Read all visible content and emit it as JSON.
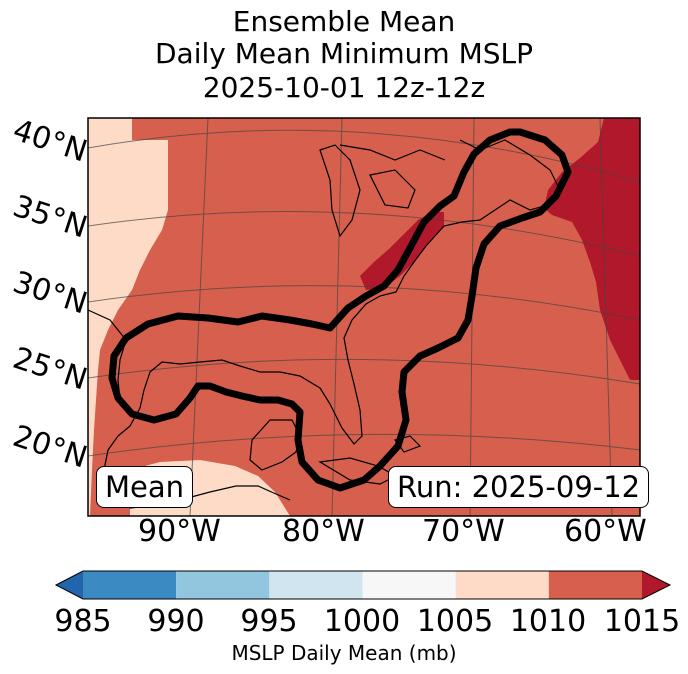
{
  "title": {
    "line1": "Ensemble Mean",
    "line2": "Daily Mean Minimum MSLP",
    "line3": "2025-10-01 12z-12z"
  },
  "chart_data": {
    "type": "heatmap",
    "variable": "MSLP Daily Mean",
    "units": "mb",
    "lat_labels": [
      "40°N",
      "35°N",
      "30°N",
      "25°N",
      "20°N"
    ],
    "lon_labels": [
      "90°W",
      "80°W",
      "70°W",
      "60°W"
    ],
    "extent": {
      "lon": [
        -97,
        -59
      ],
      "lat": [
        15,
        42
      ]
    },
    "colorbar": {
      "label": "MSLP Daily Mean (mb)",
      "ticks": [
        "985",
        "990",
        "995",
        "1000",
        "1005",
        "1010",
        "1015"
      ],
      "bins": [
        {
          "range": [
            985,
            990
          ],
          "color": "#3b8bc2"
        },
        {
          "range": [
            990,
            995
          ],
          "color": "#92c5de"
        },
        {
          "range": [
            995,
            1000
          ],
          "color": "#d1e5f0"
        },
        {
          "range": [
            1000,
            1005
          ],
          "color": "#f7f7f7"
        },
        {
          "range": [
            1005,
            1010
          ],
          "color": "#fddbc7"
        },
        {
          "range": [
            1010,
            1015
          ],
          "color": "#d6604d"
        }
      ],
      "extend_low_color": "#2166ac",
      "extend_high_color": "#b2182b"
    },
    "regions": [
      {
        "area": "western edge / Mexico",
        "mslp_range": "1005-1010"
      },
      {
        "area": "central & eastern US, Gulf, Caribbean, Atlantic",
        "mslp_range": "1010-1015"
      },
      {
        "area": "Mid-Atlantic coast and far NE Atlantic",
        "mslp_range": ">1015"
      }
    ],
    "contour": "probability outline (thick black) over Gulf of Mexico, Florida and US East Coast",
    "annotation_left": "Mean",
    "annotation_right": "Run: 2025-09-12"
  }
}
